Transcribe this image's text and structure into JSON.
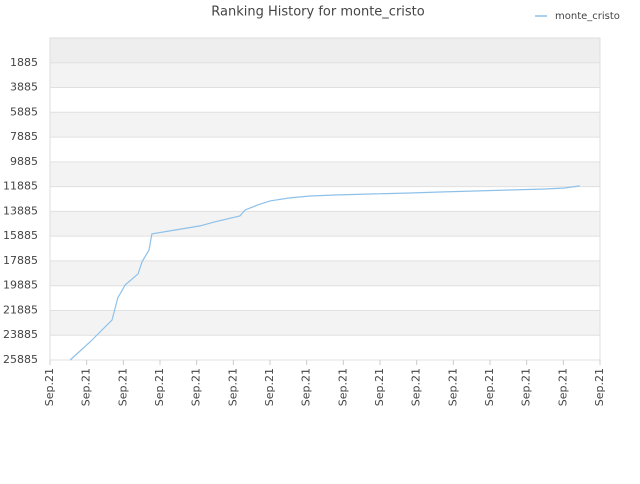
{
  "chart_data": {
    "type": "line",
    "title": "Ranking History for monte_cristo",
    "y_reversed": true,
    "ylim": [
      -115,
      25885
    ],
    "yticks": [
      1885,
      3885,
      5885,
      7885,
      9885,
      11885,
      13885,
      15885,
      17885,
      19885,
      21885,
      23885,
      25885
    ],
    "xlim": [
      0,
      15
    ],
    "xticks": [
      {
        "value": 0,
        "label": "Sep.21"
      },
      {
        "value": 1,
        "label": "Sep.21"
      },
      {
        "value": 2,
        "label": "Sep.21"
      },
      {
        "value": 3,
        "label": "Sep.21"
      },
      {
        "value": 4,
        "label": "Sep.21"
      },
      {
        "value": 5,
        "label": "Sep.21"
      },
      {
        "value": 6,
        "label": "Sep.21"
      },
      {
        "value": 7,
        "label": "Sep.21"
      },
      {
        "value": 8,
        "label": "Sep.21"
      },
      {
        "value": 9,
        "label": "Sep.21"
      },
      {
        "value": 10,
        "label": "Sep.21"
      },
      {
        "value": 11,
        "label": "Sep.21"
      },
      {
        "value": 12,
        "label": "Sep.21"
      },
      {
        "value": 13,
        "label": "Sep.21"
      },
      {
        "value": 14,
        "label": "Sep.21"
      },
      {
        "value": 15,
        "label": "Sep.21"
      }
    ],
    "legend": "top-right",
    "series": [
      {
        "name": "monte_cristo",
        "color": "#8ec1ea",
        "x": [
          0.55,
          1.09,
          1.69,
          1.85,
          2.05,
          2.4,
          2.51,
          2.7,
          2.78,
          3.27,
          4.09,
          4.5,
          5.18,
          5.32,
          5.67,
          6.0,
          6.54,
          7.09,
          7.77,
          8.73,
          9.82,
          10.64,
          11.59,
          12.54,
          13.5,
          14.04,
          14.45
        ],
        "values": [
          25885,
          24434,
          22660,
          20860,
          19820,
          18930,
          17960,
          17000,
          15700,
          15460,
          15060,
          14730,
          14250,
          13770,
          13360,
          13040,
          12800,
          12640,
          12560,
          12480,
          12400,
          12320,
          12240,
          12160,
          12080,
          12000,
          11830
        ]
      }
    ]
  }
}
